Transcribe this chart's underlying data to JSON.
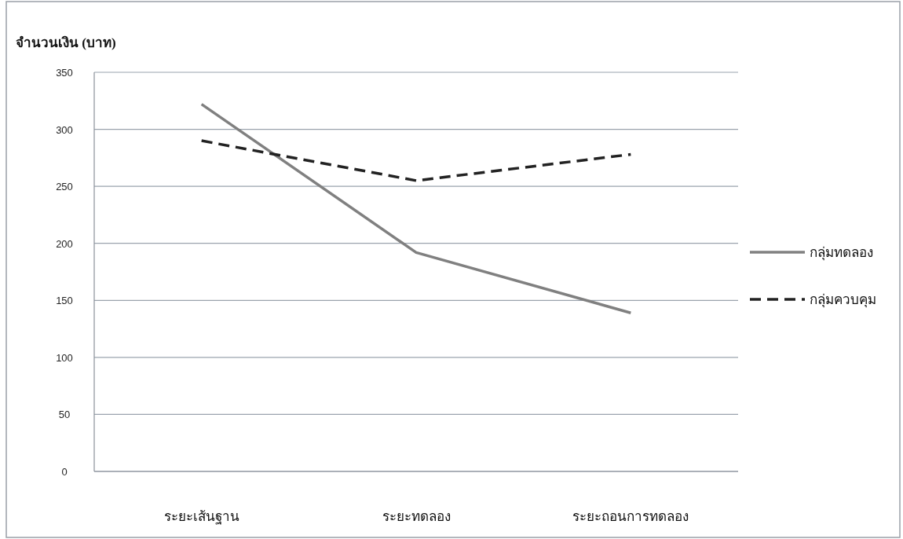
{
  "chart_data": {
    "type": "line",
    "ylabel": "จำนวนเงิน (บาท)",
    "categories": [
      "ระยะเส้นฐาน",
      "ระยะทดลอง",
      "ระยะถอนการทดลอง"
    ],
    "series": [
      {
        "name": "กลุ่มทดลอง",
        "color": "#808080",
        "values": [
          322,
          192,
          139
        ],
        "line_style": "solid"
      },
      {
        "name": "กลุ่มควบคุม",
        "color": "#222222",
        "values": [
          290,
          255,
          278
        ],
        "line_style": "dashed"
      }
    ],
    "ylim": [
      0,
      350
    ],
    "yticks": [
      0,
      50,
      100,
      150,
      200,
      250,
      300,
      350
    ],
    "grid": "y",
    "legend": "right",
    "marker": "none"
  }
}
